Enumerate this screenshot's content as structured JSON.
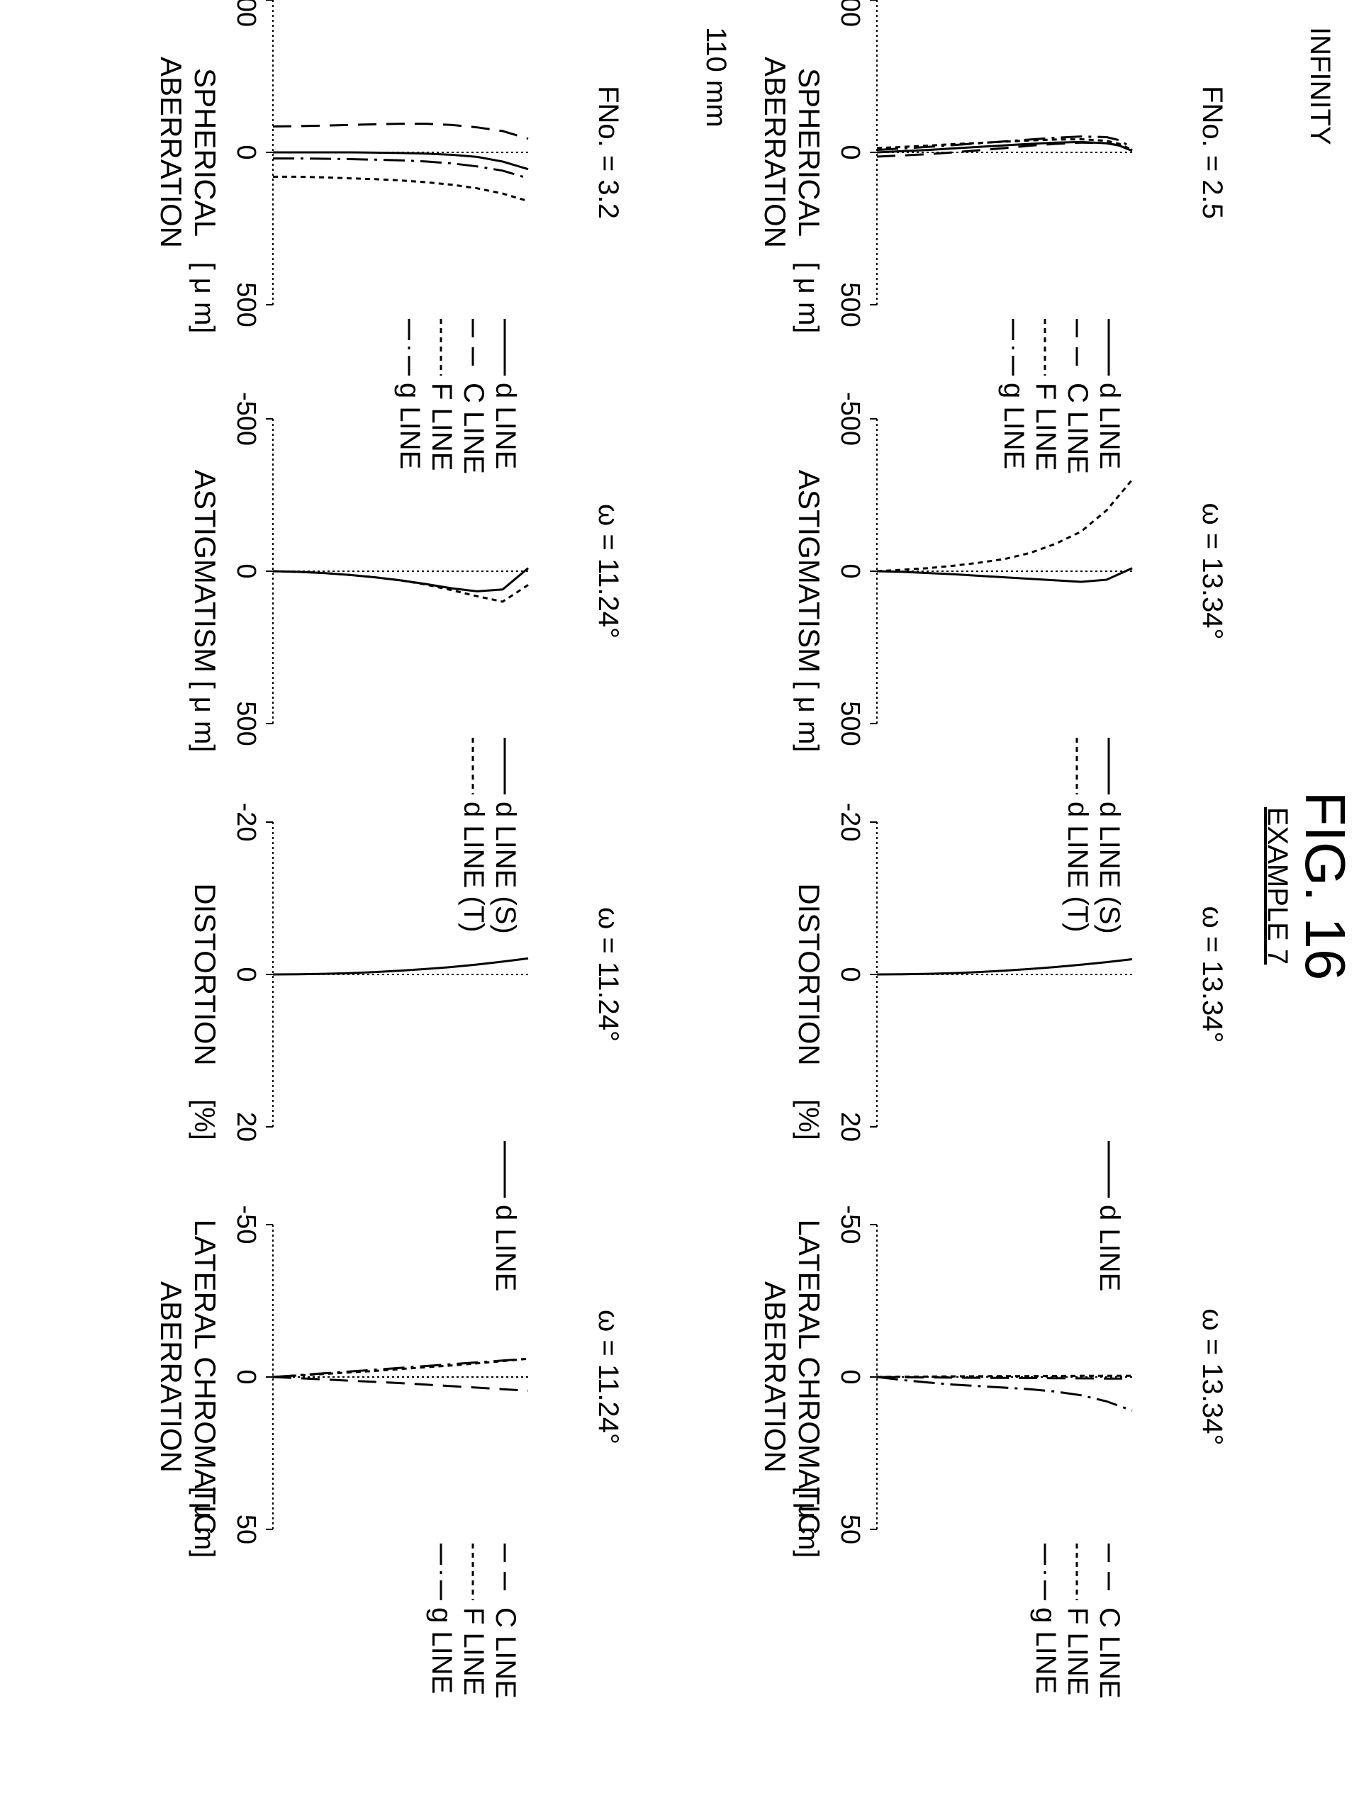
{
  "figure": {
    "title": "FIG. 16",
    "subtitle": "EXAMPLE 7"
  },
  "rows": [
    {
      "label": "INFINITY"
    },
    {
      "label": "110 mm"
    }
  ],
  "chart_data": [
    {
      "type": "line",
      "row": 0,
      "col": 0,
      "title": "FNo. = 2.5",
      "xlabel": "SPHERICAL ABERRATION",
      "unit": "[ μ m]",
      "xlim": [
        -500,
        500
      ],
      "tick_labels": [
        "-500",
        "0",
        "500"
      ],
      "y": [
        0,
        0.1,
        0.2,
        0.3,
        0.4,
        0.5,
        0.6,
        0.7,
        0.8,
        0.9,
        0.95,
        1.0
      ],
      "series": [
        {
          "name": "d LINE",
          "dash": "solid",
          "x": [
            0,
            -4,
            -8,
            -13,
            -18,
            -23,
            -28,
            -32,
            -34,
            -30,
            -22,
            -5
          ]
        },
        {
          "name": "C LINE",
          "dash": "dashed",
          "x": [
            14,
            10,
            6,
            0,
            -7,
            -14,
            -22,
            -28,
            -32,
            -30,
            -23,
            -8
          ]
        },
        {
          "name": "F LINE",
          "dash": "dotted",
          "x": [
            -14,
            -18,
            -22,
            -27,
            -31,
            -35,
            -39,
            -42,
            -43,
            -38,
            -28,
            -8
          ]
        },
        {
          "name": "g LINE",
          "dash": "dashdot",
          "x": [
            -8,
            -13,
            -18,
            -24,
            -30,
            -36,
            -42,
            -48,
            -52,
            -50,
            -40,
            -15
          ]
        }
      ]
    },
    {
      "type": "line",
      "row": 0,
      "col": 1,
      "title": "ω = 13.34°",
      "xlabel": "ASTIGMATISM",
      "unit": "[ μ m]",
      "xlim": [
        -500,
        500
      ],
      "tick_labels": [
        "-500",
        "0",
        "500"
      ],
      "y": [
        0,
        0.1,
        0.2,
        0.3,
        0.4,
        0.5,
        0.6,
        0.7,
        0.8,
        0.9,
        1.0
      ],
      "series": [
        {
          "name": "d LINE (S)",
          "dash": "solid",
          "x": [
            0,
            2,
            6,
            10,
            15,
            20,
            25,
            30,
            35,
            28,
            -10
          ]
        },
        {
          "name": "d LINE (T)",
          "dash": "dotted",
          "x": [
            0,
            -5,
            -10,
            -18,
            -28,
            -40,
            -60,
            -90,
            -130,
            -200,
            -300
          ]
        }
      ]
    },
    {
      "type": "line",
      "row": 0,
      "col": 2,
      "title": "ω = 13.34°",
      "xlabel": "DISTORTION",
      "unit": "[%]",
      "xlim": [
        -20,
        20
      ],
      "tick_labels": [
        "-20",
        "0",
        "20"
      ],
      "y": [
        0,
        0.1,
        0.2,
        0.3,
        0.4,
        0.5,
        0.6,
        0.7,
        0.8,
        0.9,
        1.0
      ],
      "series": [
        {
          "name": "d LINE",
          "dash": "solid",
          "x": [
            0,
            -0.02,
            -0.08,
            -0.18,
            -0.32,
            -0.5,
            -0.72,
            -0.98,
            -1.28,
            -1.62,
            -2.0
          ]
        }
      ]
    },
    {
      "type": "line",
      "row": 0,
      "col": 3,
      "title": "ω = 13.34°",
      "xlabel": "LATERAL CHROMATIC ABERRATION",
      "unit": "[ μ m]",
      "xlim": [
        -50,
        50
      ],
      "tick_labels": [
        "-50",
        "0",
        "50"
      ],
      "y": [
        0,
        0.1,
        0.2,
        0.3,
        0.4,
        0.5,
        0.6,
        0.7,
        0.8,
        0.9,
        1.0
      ],
      "series": [
        {
          "name": "C LINE",
          "dash": "dashed",
          "x": [
            0,
            0.1,
            0.15,
            0.2,
            0.25,
            0.3,
            0.35,
            0.4,
            0.45,
            0.5,
            0.5
          ]
        },
        {
          "name": "F LINE",
          "dash": "dotted",
          "x": [
            0,
            -0.1,
            -0.15,
            -0.2,
            -0.25,
            -0.3,
            -0.3,
            -0.35,
            -0.4,
            -0.4,
            -0.4
          ]
        },
        {
          "name": "g LINE",
          "dash": "dashdot",
          "x": [
            0,
            1.0,
            1.8,
            2.5,
            3.0,
            3.5,
            4.0,
            4.8,
            6.0,
            8.0,
            11.0
          ]
        }
      ]
    },
    {
      "type": "line",
      "row": 1,
      "col": 0,
      "title": "FNo. = 3.2",
      "xlabel": "SPHERICAL ABERRATION",
      "unit": "[ μ m]",
      "xlim": [
        -500,
        500
      ],
      "tick_labels": [
        "-500",
        "0",
        "500"
      ],
      "y": [
        0,
        0.1,
        0.2,
        0.3,
        0.4,
        0.5,
        0.6,
        0.7,
        0.8,
        0.9,
        1.0
      ],
      "series": [
        {
          "name": "d LINE",
          "dash": "solid",
          "x": [
            0,
            0,
            0,
            0,
            1,
            2,
            4,
            8,
            15,
            30,
            55
          ]
        },
        {
          "name": "C LINE",
          "dash": "dashed",
          "x": [
            -85,
            -86,
            -88,
            -90,
            -92,
            -94,
            -94,
            -90,
            -82,
            -70,
            -45
          ]
        },
        {
          "name": "F LINE",
          "dash": "dotted",
          "x": [
            80,
            80,
            82,
            85,
            88,
            92,
            98,
            106,
            118,
            135,
            160
          ]
        },
        {
          "name": "g LINE",
          "dash": "dashdot",
          "x": [
            20,
            20,
            21,
            22,
            24,
            26,
            30,
            36,
            46,
            60,
            85
          ]
        }
      ]
    },
    {
      "type": "line",
      "row": 1,
      "col": 1,
      "title": "ω = 11.24°",
      "xlabel": "ASTIGMATISM",
      "unit": "[ μ m]",
      "xlim": [
        -500,
        500
      ],
      "tick_labels": [
        "-500",
        "0",
        "500"
      ],
      "y": [
        0,
        0.1,
        0.2,
        0.3,
        0.4,
        0.5,
        0.6,
        0.7,
        0.8,
        0.9,
        1.0
      ],
      "series": [
        {
          "name": "d LINE (S)",
          "dash": "solid",
          "x": [
            0,
            2,
            6,
            12,
            20,
            30,
            42,
            56,
            66,
            60,
            -10
          ]
        },
        {
          "name": "d LINE (T)",
          "dash": "dotted",
          "x": [
            0,
            2,
            6,
            12,
            20,
            30,
            44,
            62,
            82,
            100,
            45
          ]
        }
      ]
    },
    {
      "type": "line",
      "row": 1,
      "col": 2,
      "title": "ω = 11.24°",
      "xlabel": "DISTORTION",
      "unit": "[%]",
      "xlim": [
        -20,
        20
      ],
      "tick_labels": [
        "-20",
        "0",
        "20"
      ],
      "y": [
        0,
        0.1,
        0.2,
        0.3,
        0.4,
        0.5,
        0.6,
        0.7,
        0.8,
        0.9,
        1.0
      ],
      "series": [
        {
          "name": "d LINE",
          "dash": "solid",
          "x": [
            0,
            -0.02,
            -0.08,
            -0.18,
            -0.32,
            -0.5,
            -0.72,
            -0.98,
            -1.3,
            -1.68,
            -2.1
          ]
        }
      ]
    },
    {
      "type": "line",
      "row": 1,
      "col": 3,
      "title": "ω = 11.24°",
      "xlabel": "LATERAL CHROMATIC ABERRATION",
      "unit": "[ μ m]",
      "xlim": [
        -50,
        50
      ],
      "tick_labels": [
        "-50",
        "0",
        "50"
      ],
      "y": [
        0,
        0.1,
        0.2,
        0.3,
        0.4,
        0.5,
        0.6,
        0.7,
        0.8,
        0.9,
        1.0
      ],
      "series": [
        {
          "name": "C LINE",
          "dash": "dashed",
          "x": [
            0,
            0.4,
            0.8,
            1.2,
            1.6,
            2.0,
            2.5,
            3.0,
            3.5,
            4.0,
            4.5
          ]
        },
        {
          "name": "F LINE",
          "dash": "dotted",
          "x": [
            0,
            -0.5,
            -1.0,
            -1.5,
            -2.0,
            -2.6,
            -3.2,
            -3.8,
            -4.5,
            -5.2,
            -6.0
          ]
        },
        {
          "name": "g LINE",
          "dash": "dashdot",
          "x": [
            0,
            -0.6,
            -1.2,
            -1.8,
            -2.4,
            -3.0,
            -3.6,
            -4.2,
            -4.8,
            -5.4,
            -6.0
          ]
        }
      ]
    }
  ]
}
